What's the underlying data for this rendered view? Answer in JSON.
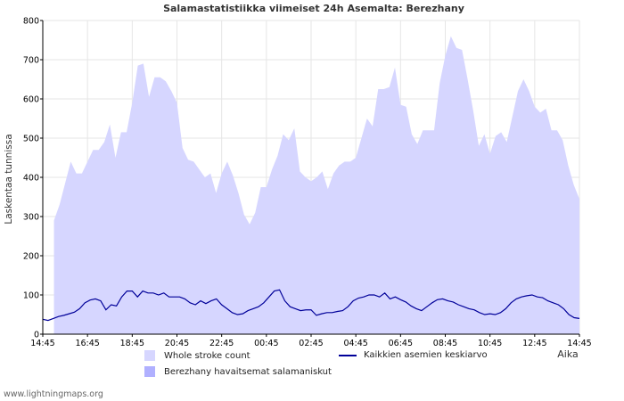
{
  "chart_data": {
    "type": "area",
    "title": "Salamastatistiikka viimeiset 24h Asemalta: Berezhany",
    "ylabel": "Laskentaa tunnissa",
    "xlabel": "Aika",
    "ylim": [
      0,
      800
    ],
    "y_ticks": [
      "0",
      "100",
      "200",
      "300",
      "400",
      "500",
      "600",
      "700",
      "800"
    ],
    "x_ticks": [
      "14:45",
      "16:45",
      "18:45",
      "20:45",
      "22:45",
      "00:45",
      "02:45",
      "04:45",
      "06:45",
      "08:45",
      "10:45",
      "12:45",
      "14:45"
    ],
    "interval_minutes": 15,
    "series": [
      {
        "name": "Whole stroke count",
        "kind": "area",
        "color": "#d6d6ff",
        "values": [
          290,
          330,
          385,
          440,
          410,
          410,
          440,
          470,
          470,
          490,
          535,
          450,
          515,
          515,
          590,
          685,
          690,
          605,
          655,
          655,
          645,
          620,
          590,
          475,
          445,
          440,
          420,
          400,
          410,
          360,
          410,
          440,
          405,
          360,
          305,
          280,
          310,
          375,
          375,
          420,
          455,
          510,
          495,
          525,
          415,
          400,
          390,
          400,
          415,
          370,
          410,
          430,
          440,
          440,
          450,
          500,
          550,
          530,
          625,
          625,
          630,
          680,
          585,
          580,
          510,
          485,
          520,
          520,
          520,
          640,
          710,
          760,
          730,
          725,
          650,
          570,
          480,
          510,
          460,
          505,
          515,
          490,
          555,
          620,
          650,
          620,
          580,
          565,
          575,
          520,
          520,
          495,
          430,
          380,
          345
        ]
      },
      {
        "name": "Berezhany havaitsemat salamaniskut",
        "kind": "area",
        "color": "#b0b0ff",
        "values": []
      },
      {
        "name": "Kaikkien asemien keskiarvo",
        "kind": "line",
        "color": "#000099",
        "values": [
          38,
          35,
          40,
          45,
          48,
          52,
          56,
          65,
          80,
          87,
          90,
          85,
          62,
          75,
          72,
          95,
          110,
          110,
          95,
          110,
          105,
          105,
          100,
          105,
          95,
          95,
          95,
          90,
          80,
          75,
          85,
          78,
          85,
          90,
          75,
          65,
          55,
          50,
          52,
          60,
          65,
          70,
          80,
          95,
          110,
          113,
          85,
          70,
          65,
          60,
          62,
          62,
          48,
          52,
          55,
          55,
          58,
          60,
          70,
          85,
          92,
          95,
          100,
          100,
          95,
          105,
          90,
          95,
          88,
          82,
          72,
          65,
          60,
          70,
          80,
          88,
          90,
          85,
          82,
          75,
          70,
          65,
          62,
          55,
          50,
          52,
          50,
          55,
          65,
          80,
          90,
          95,
          98,
          100,
          95,
          93,
          85,
          80,
          75,
          65,
          50,
          42,
          40
        ]
      }
    ]
  },
  "footer": {
    "source": "www.lightningmaps.org"
  }
}
